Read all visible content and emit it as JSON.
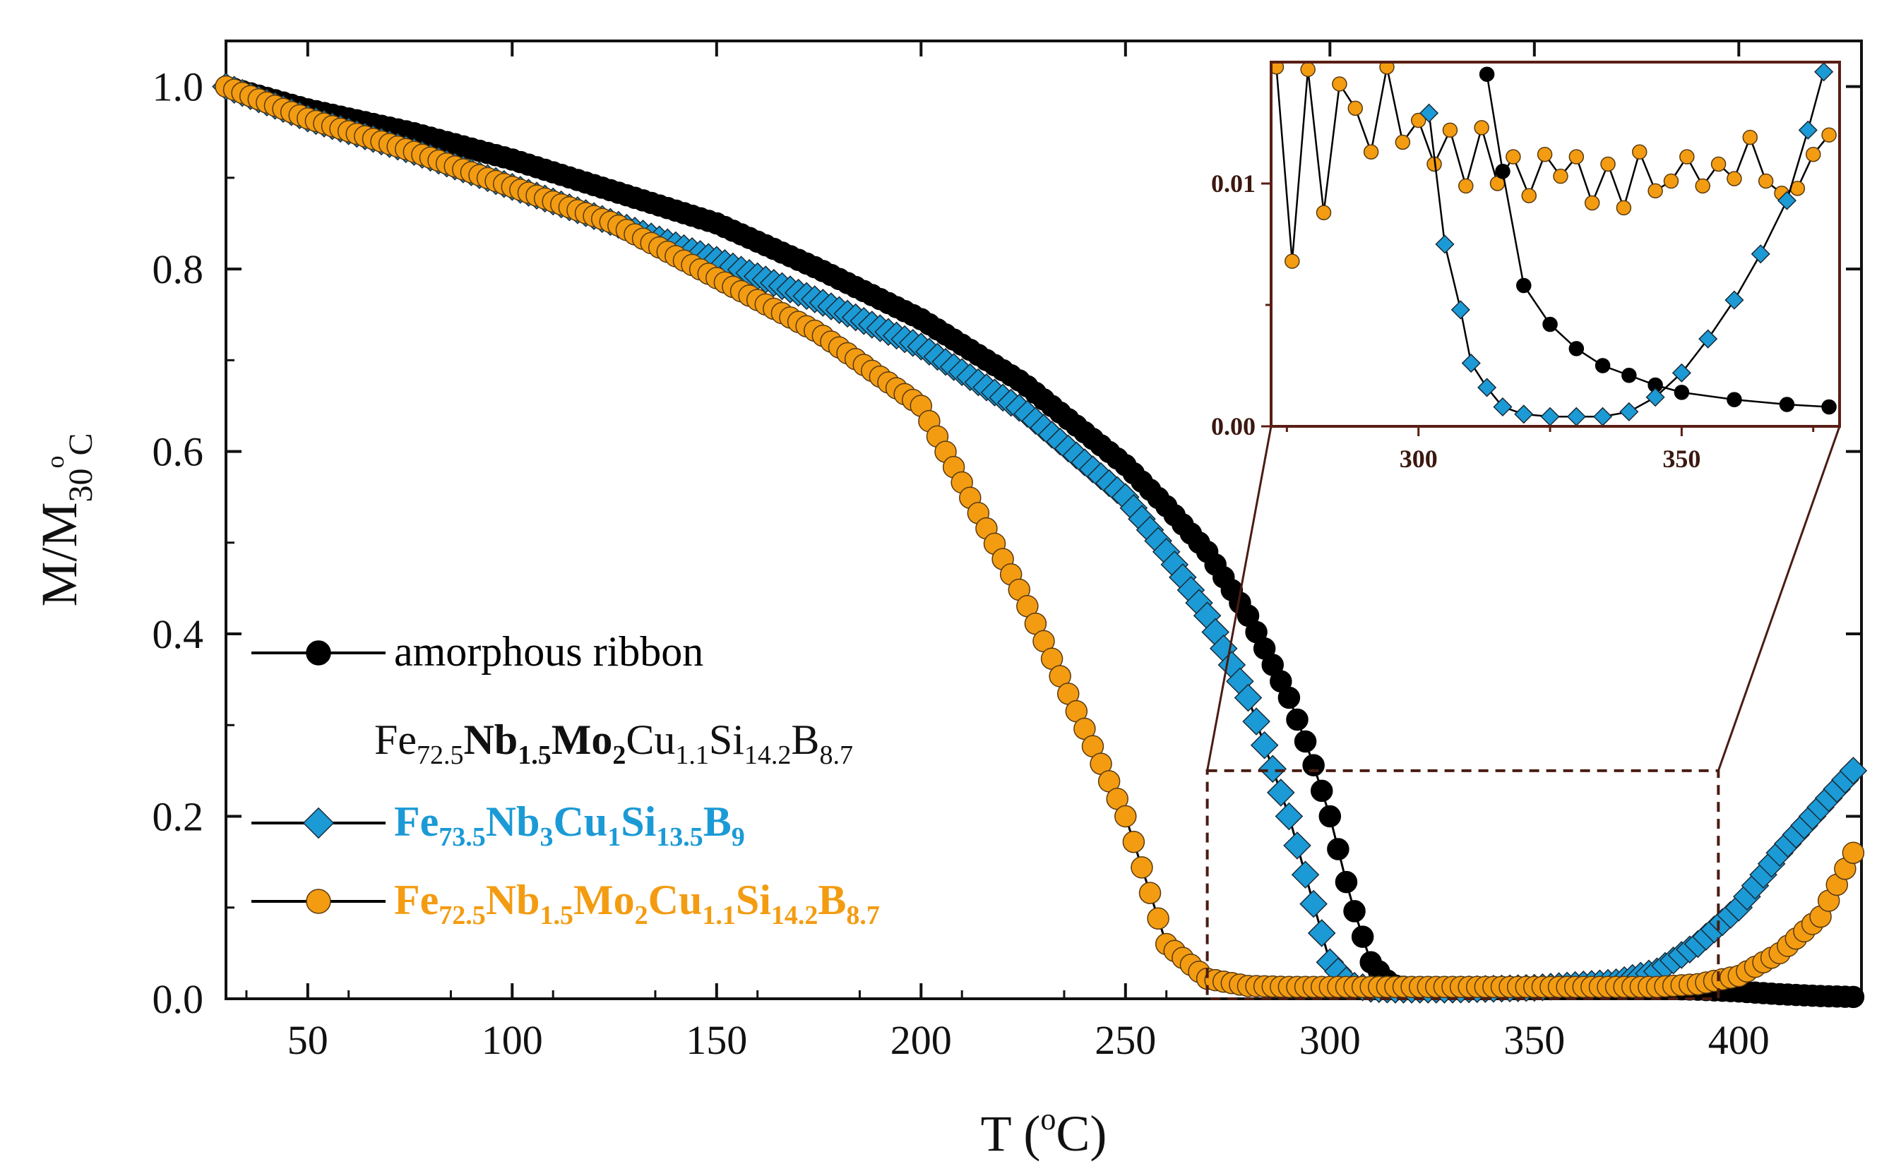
{
  "chart_data": [
    {
      "type": "scatter",
      "title": "",
      "xlabel": "T (°C)",
      "ylabel": "M/M30°C",
      "xlim": [
        30,
        430
      ],
      "ylim": [
        0.0,
        1.05
      ],
      "xticks": [
        50,
        100,
        150,
        200,
        250,
        300,
        350,
        400
      ],
      "yticks": [
        0.0,
        0.2,
        0.4,
        0.6,
        0.8,
        1.0
      ],
      "ytick_labels": [
        "0.0",
        "0.2",
        "0.4",
        "0.6",
        "0.8",
        "1.0"
      ],
      "x": [
        30,
        50,
        75,
        100,
        125,
        150,
        175,
        200,
        225,
        250,
        260,
        270,
        280,
        290,
        295,
        300,
        305,
        310,
        315,
        320,
        330,
        350,
        370,
        380,
        390,
        400,
        410,
        420,
        428
      ],
      "series": [
        {
          "name": "amorphous ribbon Fe72.5Nb1.5Mo2Cu1.1Si14.2B8.7",
          "color": "#000000",
          "marker": "circle",
          "values": [
            1.0,
            0.975,
            0.95,
            0.92,
            0.885,
            0.85,
            0.8,
            0.745,
            0.675,
            0.585,
            0.54,
            0.49,
            0.42,
            0.33,
            0.27,
            0.2,
            0.11,
            0.04,
            0.015,
            0.012,
            0.011,
            0.011,
            0.011,
            0.011,
            0.01,
            0.008,
            0.005,
            0.003,
            0.002
          ]
        },
        {
          "name": "Fe73.5Nb3Cu1Si13.5B9",
          "color": "#1b9ad6",
          "marker": "diamond",
          "values": [
            1.0,
            0.965,
            0.93,
            0.89,
            0.85,
            0.81,
            0.765,
            0.715,
            0.645,
            0.55,
            0.49,
            0.42,
            0.33,
            0.2,
            0.12,
            0.04,
            0.015,
            0.011,
            0.01,
            0.01,
            0.01,
            0.012,
            0.018,
            0.03,
            0.06,
            0.1,
            0.16,
            0.21,
            0.25
          ]
        },
        {
          "name": "Fe72.5Nb1.5Mo2Cu1.1Si14.2B8.7",
          "color": "#f39c12",
          "marker": "circle",
          "values": [
            1.0,
            0.965,
            0.93,
            0.89,
            0.85,
            0.79,
            0.73,
            0.65,
            0.44,
            0.2,
            0.06,
            0.022,
            0.014,
            0.013,
            0.013,
            0.013,
            0.013,
            0.013,
            0.013,
            0.013,
            0.013,
            0.013,
            0.013,
            0.013,
            0.016,
            0.025,
            0.05,
            0.09,
            0.16
          ]
        }
      ],
      "legend": {
        "placement": "lower-left",
        "entries": [
          {
            "text": "amorphous ribbon",
            "color": "#000000",
            "marker": "circle"
          },
          {
            "text_parts": [
              {
                "t": "Fe",
                "sub": false,
                "bold": false
              },
              {
                "t": "72.5",
                "sub": true,
                "bold": false
              },
              {
                "t": "Nb",
                "sub": false,
                "bold": true
              },
              {
                "t": "1.5",
                "sub": true,
                "bold": true
              },
              {
                "t": "Mo",
                "sub": false,
                "bold": true
              },
              {
                "t": "2",
                "sub": true,
                "bold": true
              },
              {
                "t": "Cu",
                "sub": false,
                "bold": false
              },
              {
                "t": "1.1",
                "sub": true,
                "bold": false
              },
              {
                "t": "Si",
                "sub": false,
                "bold": false
              },
              {
                "t": "14.2",
                "sub": true,
                "bold": false
              },
              {
                "t": "B",
                "sub": false,
                "bold": false
              },
              {
                "t": "8.7",
                "sub": true,
                "bold": false
              }
            ],
            "color": "#111111",
            "marker": "none"
          },
          {
            "text_parts": [
              {
                "t": "Fe",
                "sub": false,
                "bold": true
              },
              {
                "t": "73.5",
                "sub": true,
                "bold": true
              },
              {
                "t": "Nb",
                "sub": false,
                "bold": true
              },
              {
                "t": "3",
                "sub": true,
                "bold": true
              },
              {
                "t": "Cu",
                "sub": false,
                "bold": true
              },
              {
                "t": "1",
                "sub": true,
                "bold": true
              },
              {
                "t": "Si",
                "sub": false,
                "bold": true
              },
              {
                "t": "13.5",
                "sub": true,
                "bold": true
              },
              {
                "t": "B",
                "sub": false,
                "bold": true
              },
              {
                "t": "9",
                "sub": true,
                "bold": true
              }
            ],
            "color": "#1b9ad6",
            "marker": "diamond"
          },
          {
            "text_parts": [
              {
                "t": "Fe",
                "sub": false,
                "bold": true
              },
              {
                "t": "72.5",
                "sub": true,
                "bold": true
              },
              {
                "t": "Nb",
                "sub": false,
                "bold": true
              },
              {
                "t": "1.5",
                "sub": true,
                "bold": true
              },
              {
                "t": "Mo",
                "sub": false,
                "bold": true
              },
              {
                "t": "2",
                "sub": true,
                "bold": true
              },
              {
                "t": "Cu",
                "sub": false,
                "bold": true
              },
              {
                "t": "1.1",
                "sub": true,
                "bold": true
              },
              {
                "t": "Si",
                "sub": false,
                "bold": true
              },
              {
                "t": "14.2",
                "sub": true,
                "bold": true
              },
              {
                "t": "B",
                "sub": false,
                "bold": true
              },
              {
                "t": "8.7",
                "sub": true,
                "bold": true
              }
            ],
            "color": "#f39c12",
            "marker": "circle"
          }
        ]
      },
      "zoom_region": {
        "xlim": [
          270,
          395
        ],
        "ylim": [
          0.0,
          0.25
        ],
        "style": "dashed",
        "color": "#4a1c14"
      }
    },
    {
      "type": "scatter",
      "title": "inset",
      "xlim": [
        272,
        380
      ],
      "ylim": [
        0.0,
        0.015
      ],
      "xticks": [
        300,
        350
      ],
      "yticks": [
        0.0,
        0.01
      ],
      "ytick_labels": [
        "0.00",
        "0.01"
      ],
      "frame_color": "#5a1e14",
      "series": [
        {
          "name": "amorphous ribbon",
          "color": "#000000",
          "marker": "circle",
          "x": [
            313,
            316,
            320,
            325,
            330,
            335,
            340,
            345,
            350,
            360,
            370,
            378
          ],
          "values": [
            0.0145,
            0.0105,
            0.0058,
            0.0042,
            0.0032,
            0.0025,
            0.0021,
            0.0017,
            0.0014,
            0.0011,
            0.0009,
            0.0008
          ]
        },
        {
          "name": "Fe73.5Nb3Cu1Si13.5B9",
          "color": "#1b9ad6",
          "marker": "diamond",
          "x": [
            302,
            305,
            308,
            310,
            313,
            316,
            320,
            325,
            330,
            335,
            340,
            345,
            350,
            355,
            360,
            365,
            370,
            374,
            377
          ],
          "values": [
            0.0129,
            0.0075,
            0.0048,
            0.0026,
            0.0016,
            0.0008,
            0.0005,
            0.0004,
            0.0004,
            0.0004,
            0.0006,
            0.0012,
            0.0022,
            0.0036,
            0.0052,
            0.0071,
            0.0093,
            0.0122,
            0.0146
          ]
        },
        {
          "name": "Fe72.5Nb1.5Mo2Cu1.1Si14.2B8.7",
          "color": "#f39c12",
          "marker": "circle",
          "x": [
            273,
            276,
            279,
            282,
            285,
            288,
            291,
            294,
            297,
            300,
            303,
            306,
            309,
            312,
            315,
            318,
            321,
            324,
            327,
            330,
            333,
            336,
            339,
            342,
            345,
            348,
            351,
            354,
            357,
            360,
            363,
            366,
            369,
            372,
            375,
            378
          ],
          "values": [
            0.0148,
            0.0068,
            0.0147,
            0.0088,
            0.0141,
            0.0131,
            0.0113,
            0.0148,
            0.0117,
            0.0126,
            0.0108,
            0.0122,
            0.0099,
            0.0123,
            0.01,
            0.0111,
            0.0095,
            0.0112,
            0.0103,
            0.0111,
            0.0092,
            0.0108,
            0.009,
            0.0113,
            0.0097,
            0.0101,
            0.0111,
            0.0099,
            0.0108,
            0.0102,
            0.0119,
            0.0101,
            0.0096,
            0.0098,
            0.0112,
            0.012
          ]
        }
      ]
    }
  ]
}
